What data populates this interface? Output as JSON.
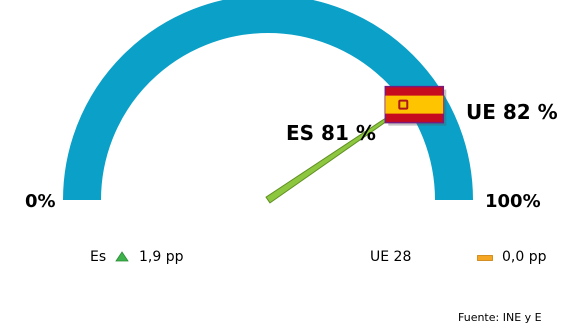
{
  "chart_data": {
    "type": "gauge",
    "axis": {
      "min_label": "0%",
      "max_label": "100%",
      "min": 0,
      "max": 100
    },
    "series": [
      {
        "name": "ES",
        "label": "ES 81 %",
        "value": 81,
        "color": "#8dc63f"
      },
      {
        "name": "UE",
        "label": "UE 82 %",
        "value": 82
      }
    ],
    "colors": {
      "arc": "#0aa0c8",
      "needle": "#8dc63f",
      "needle_stroke": "#5e8f22"
    },
    "legend": {
      "es": {
        "label": "Es",
        "change": "1,9 pp",
        "trend": "up",
        "icon": "triangle-up-icon",
        "color": "#3db24b"
      },
      "ue": {
        "label": "UE 28",
        "change": "0,0 pp",
        "trend": "flat",
        "icon": "dash-icon",
        "color": "#f5a623"
      }
    },
    "source": "Fuente: INE y E"
  }
}
